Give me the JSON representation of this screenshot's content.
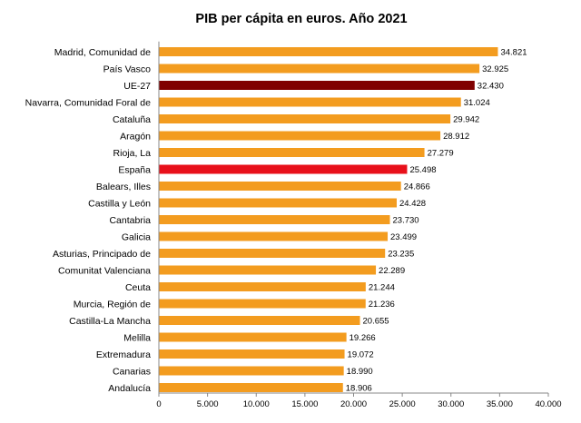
{
  "chart_data": {
    "type": "bar",
    "orientation": "horizontal",
    "title": "PIB per cápita en euros. Año 2021",
    "categories": [
      "Madrid, Comunidad de",
      "País Vasco",
      "UE-27",
      "Navarra, Comunidad Foral de",
      "Cataluña",
      "Aragón",
      "Rioja, La",
      "España",
      "Balears, Illes",
      "Castilla y León",
      "Cantabria",
      "Galicia",
      "Asturias, Principado de",
      "Comunitat Valenciana",
      "Ceuta",
      "Murcia, Región de",
      "Castilla-La Mancha",
      "Melilla",
      "Extremadura",
      "Canarias",
      "Andalucía"
    ],
    "values": [
      34821,
      32925,
      32430,
      31024,
      29942,
      28912,
      27279,
      25498,
      24866,
      24428,
      23730,
      23499,
      23235,
      22289,
      21244,
      21236,
      20655,
      19266,
      19072,
      18990,
      18906
    ],
    "value_labels": [
      "34.821",
      "32.925",
      "32.430",
      "31.024",
      "29.942",
      "28.912",
      "27.279",
      "25.498",
      "24.866",
      "24.428",
      "23.730",
      "23.499",
      "23.235",
      "22.289",
      "21.244",
      "21.236",
      "20.655",
      "19.266",
      "19.072",
      "18.990",
      "18.906"
    ],
    "xlim": [
      0,
      40000
    ],
    "xticks": [
      0,
      5000,
      10000,
      15000,
      20000,
      25000,
      30000,
      35000,
      40000
    ],
    "xtick_labels": [
      "0",
      "5.000",
      "10.000",
      "15.000",
      "20.000",
      "25.000",
      "30.000",
      "35.000",
      "40.000"
    ],
    "grid": false,
    "colors": {
      "default": "#F39C1F",
      "UE-27": "#800000",
      "España": "#E8101A",
      "axis": "#888888"
    }
  }
}
